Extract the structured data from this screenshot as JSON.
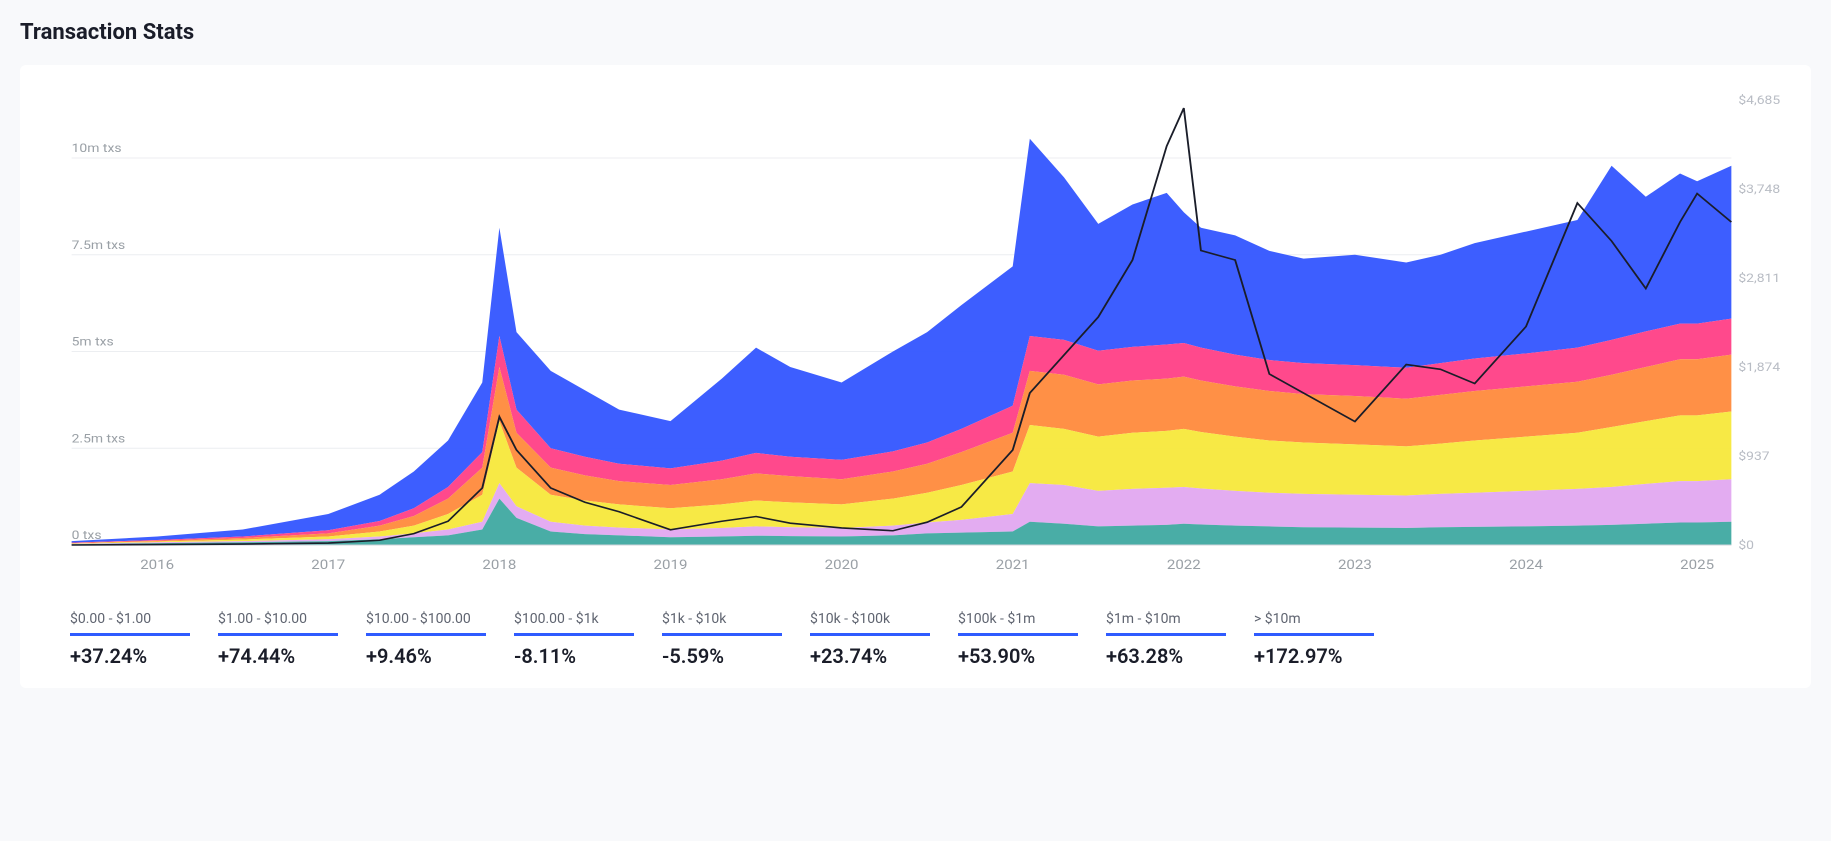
{
  "title": "Transaction Stats",
  "chart": {
    "type": "stacked-area-with-line",
    "background_color": "#ffffff",
    "grid_color": "#eceef1",
    "baseline_color": "#cfd3da",
    "left_axis": {
      "label_color": "#9aa0a6",
      "label_fontsize": 12,
      "ticks": [
        {
          "v": 0,
          "label": "0 txs"
        },
        {
          "v": 2.5,
          "label": "2.5m txs"
        },
        {
          "v": 5,
          "label": "5m txs"
        },
        {
          "v": 7.5,
          "label": "7.5m txs"
        },
        {
          "v": 10,
          "label": "10m txs"
        }
      ],
      "min": 0,
      "max": 11.5
    },
    "right_axis": {
      "label_color": "#b8bcc4",
      "label_fontsize": 12,
      "ticks": [
        {
          "v": 0,
          "label": "$0"
        },
        {
          "v": 937,
          "label": "$937"
        },
        {
          "v": 1874,
          "label": "$1,874"
        },
        {
          "v": 2811,
          "label": "$2,811"
        },
        {
          "v": 3748,
          "label": "$3,748"
        },
        {
          "v": 4685,
          "label": "$4,685"
        }
      ],
      "min": 0,
      "max": 4685
    },
    "x_axis": {
      "label_color": "#9aa0a6",
      "label_fontsize": 13,
      "years": [
        2016,
        2017,
        2018,
        2019,
        2020,
        2021,
        2022,
        2023,
        2024,
        2025
      ],
      "min": 2015.5,
      "max": 2025.2
    },
    "stack_colors": {
      "teal": "#3fa9a1",
      "plum": "#e2a8f0",
      "yellow": "#f7e83b",
      "orange": "#ff8a3c",
      "pink": "#ff3f86",
      "blue": "#3355ff"
    },
    "price_line_color": "#1a1d29",
    "price_line_width": 1.6,
    "x_samples": [
      2015.5,
      2016,
      2016.5,
      2017,
      2017.3,
      2017.5,
      2017.7,
      2017.9,
      2018,
      2018.1,
      2018.3,
      2018.5,
      2018.7,
      2019,
      2019.3,
      2019.5,
      2019.7,
      2020,
      2020.3,
      2020.5,
      2020.7,
      2021,
      2021.1,
      2021.3,
      2021.5,
      2021.7,
      2021.9,
      2022,
      2022.1,
      2022.3,
      2022.5,
      2022.7,
      2023,
      2023.3,
      2023.5,
      2023.7,
      2024,
      2024.3,
      2024.5,
      2024.7,
      2024.9,
      2025,
      2025.2
    ],
    "cumulative": {
      "teal": [
        0.02,
        0.05,
        0.07,
        0.1,
        0.15,
        0.2,
        0.25,
        0.4,
        1.2,
        0.7,
        0.35,
        0.28,
        0.25,
        0.2,
        0.22,
        0.24,
        0.23,
        0.22,
        0.25,
        0.3,
        0.32,
        0.35,
        0.6,
        0.55,
        0.48,
        0.5,
        0.52,
        0.55,
        0.53,
        0.5,
        0.48,
        0.46,
        0.45,
        0.44,
        0.46,
        0.47,
        0.48,
        0.5,
        0.52,
        0.55,
        0.58,
        0.58,
        0.6
      ],
      "plum": [
        0.03,
        0.07,
        0.1,
        0.15,
        0.22,
        0.3,
        0.4,
        0.6,
        1.6,
        1.0,
        0.6,
        0.5,
        0.45,
        0.4,
        0.44,
        0.48,
        0.46,
        0.44,
        0.5,
        0.58,
        0.65,
        0.8,
        1.6,
        1.55,
        1.4,
        1.45,
        1.48,
        1.5,
        1.46,
        1.4,
        1.35,
        1.32,
        1.3,
        1.28,
        1.32,
        1.35,
        1.4,
        1.45,
        1.5,
        1.58,
        1.65,
        1.65,
        1.7
      ],
      "yellow": [
        0.04,
        0.09,
        0.14,
        0.22,
        0.35,
        0.5,
        0.8,
        1.3,
        3.2,
        2.0,
        1.3,
        1.15,
        1.05,
        0.95,
        1.05,
        1.15,
        1.1,
        1.05,
        1.2,
        1.35,
        1.55,
        1.9,
        3.1,
        3.0,
        2.8,
        2.9,
        2.95,
        3.0,
        2.92,
        2.8,
        2.7,
        2.65,
        2.6,
        2.55,
        2.62,
        2.7,
        2.8,
        2.9,
        3.05,
        3.2,
        3.35,
        3.35,
        3.45
      ],
      "orange": [
        0.05,
        0.11,
        0.18,
        0.3,
        0.5,
        0.75,
        1.2,
        2.0,
        4.6,
        2.9,
        2.0,
        1.8,
        1.65,
        1.55,
        1.7,
        1.85,
        1.78,
        1.7,
        1.9,
        2.1,
        2.4,
        2.9,
        4.5,
        4.4,
        4.15,
        4.25,
        4.3,
        4.35,
        4.25,
        4.1,
        3.98,
        3.9,
        3.85,
        3.78,
        3.88,
        3.98,
        4.1,
        4.22,
        4.4,
        4.6,
        4.8,
        4.8,
        4.92
      ],
      "pink": [
        0.06,
        0.13,
        0.22,
        0.38,
        0.62,
        0.95,
        1.5,
        2.4,
        5.4,
        3.5,
        2.5,
        2.28,
        2.1,
        1.98,
        2.18,
        2.38,
        2.28,
        2.2,
        2.42,
        2.65,
        3.0,
        3.6,
        5.4,
        5.3,
        5.02,
        5.12,
        5.18,
        5.22,
        5.1,
        4.92,
        4.78,
        4.7,
        4.65,
        4.58,
        4.7,
        4.82,
        4.95,
        5.1,
        5.3,
        5.52,
        5.72,
        5.72,
        5.85
      ],
      "blue": [
        0.1,
        0.22,
        0.4,
        0.8,
        1.3,
        1.9,
        2.7,
        4.2,
        8.2,
        5.5,
        4.5,
        4.0,
        3.5,
        3.2,
        4.3,
        5.1,
        4.6,
        4.2,
        5.0,
        5.5,
        6.2,
        7.2,
        10.5,
        9.5,
        8.3,
        8.8,
        9.1,
        8.6,
        8.2,
        8.0,
        7.6,
        7.4,
        7.5,
        7.3,
        7.5,
        7.8,
        8.1,
        8.4,
        9.8,
        9.0,
        9.6,
        9.4,
        9.8
      ]
    },
    "price": [
      0,
      5,
      10,
      20,
      50,
      120,
      250,
      600,
      1350,
      1000,
      600,
      450,
      350,
      160,
      250,
      300,
      230,
      180,
      150,
      240,
      400,
      1000,
      1600,
      2000,
      2400,
      3000,
      4200,
      4600,
      3100,
      3000,
      1800,
      1600,
      1300,
      1900,
      1850,
      1700,
      2300,
      3600,
      3200,
      2700,
      3400,
      3700,
      3400
    ]
  },
  "stats": [
    {
      "label": "$0.00 - $1.00",
      "value": "+37.24%"
    },
    {
      "label": "$1.00 - $10.00",
      "value": "+74.44%"
    },
    {
      "label": "$10.00 - $100.00",
      "value": "+9.46%"
    },
    {
      "label": "$100.00 - $1k",
      "value": "-8.11%"
    },
    {
      "label": "$1k - $10k",
      "value": "-5.59%"
    },
    {
      "label": "$10k - $100k",
      "value": "+23.74%"
    },
    {
      "label": "$100k - $1m",
      "value": "+53.90%"
    },
    {
      "label": "$1m - $10m",
      "value": "+63.28%"
    },
    {
      "label": "> $10m",
      "value": "+172.97%"
    }
  ],
  "stat_bar_color": "#2f5bff"
}
